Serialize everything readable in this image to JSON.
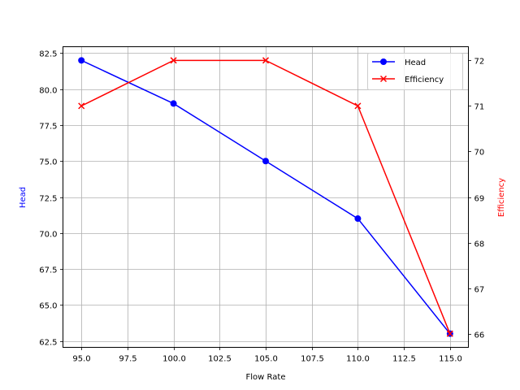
{
  "chart_data": {
    "type": "line",
    "title": "",
    "x": [
      95,
      100,
      105,
      110,
      115
    ],
    "xlabel": "Flow Rate",
    "xlim": [
      94.0,
      116.0
    ],
    "xticks": [
      "95.0",
      "97.5",
      "100.0",
      "102.5",
      "105.0",
      "107.5",
      "110.0",
      "112.5",
      "115.0"
    ],
    "grid": true,
    "legend_position": "upper right",
    "series": [
      {
        "name": "Head",
        "axis": "left",
        "color": "#0000ff",
        "marker": "o",
        "values": [
          82,
          79,
          75,
          71,
          63
        ]
      },
      {
        "name": "Efficiency",
        "axis": "right",
        "color": "#ff0000",
        "marker": "x",
        "values": [
          71,
          72,
          72,
          71,
          66
        ]
      }
    ],
    "ylabel": "Head",
    "ylim": [
      62.05,
      82.95
    ],
    "yticks": [
      "62.5",
      "65.0",
      "67.5",
      "70.0",
      "72.5",
      "75.0",
      "77.5",
      "80.0",
      "82.5"
    ],
    "y2label": "Efficiency",
    "y2lim": [
      65.7,
      72.3
    ],
    "y2ticks": [
      "66",
      "67",
      "68",
      "69",
      "70",
      "71",
      "72"
    ]
  },
  "legend": {
    "items": [
      {
        "label": "Head"
      },
      {
        "label": "Efficiency"
      }
    ]
  }
}
